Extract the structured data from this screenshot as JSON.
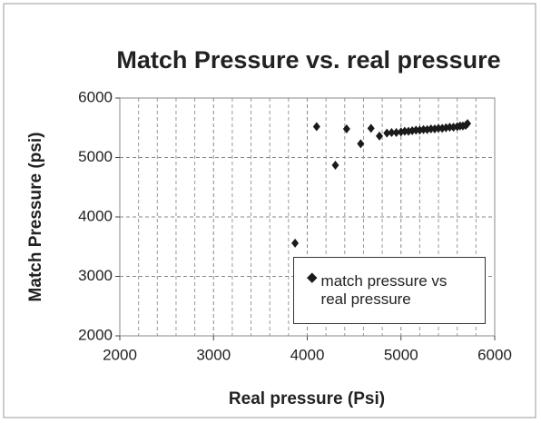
{
  "chart_data": {
    "type": "scatter",
    "title": "Match Pressure vs. real pressure",
    "x_label": "Real pressure (Psi)",
    "y_label": "Match Pressure (psi)",
    "series": [
      {
        "name": "match pressure vs real pressure",
        "color": "#1a1a1a",
        "x": [
          3870,
          4100,
          4300,
          4420,
          4570,
          4680,
          4770,
          4850,
          4900,
          4950,
          5000,
          5040,
          5080,
          5120,
          5160,
          5200,
          5240,
          5280,
          5320,
          5360,
          5400,
          5440,
          5480,
          5520,
          5560,
          5600,
          5630,
          5660,
          5690,
          5710
        ],
        "values": [
          3560,
          5520,
          4870,
          5480,
          5230,
          5490,
          5360,
          5410,
          5420,
          5420,
          5430,
          5440,
          5440,
          5450,
          5460,
          5460,
          5470,
          5470,
          5480,
          5480,
          5490,
          5490,
          5500,
          5510,
          5510,
          5520,
          5530,
          5530,
          5540,
          5570
        ]
      }
    ],
    "xlim": [
      2000,
      6000
    ],
    "xticks": [
      2000,
      3000,
      4000,
      5000,
      6000
    ],
    "ylim": [
      2000,
      6000
    ],
    "yticks": [
      2000,
      3000,
      4000,
      5000,
      6000
    ],
    "grid": true,
    "legend": "lower right"
  }
}
